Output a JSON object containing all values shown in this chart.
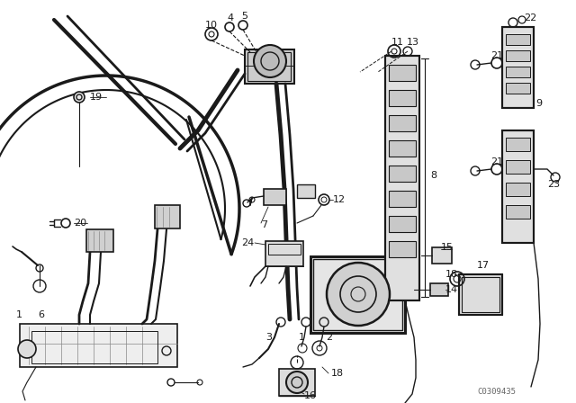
{
  "background_color": "#ffffff",
  "diagram_color": "#1a1a1a",
  "watermark": "C0309435",
  "figsize": [
    6.4,
    4.48
  ],
  "dpi": 100
}
